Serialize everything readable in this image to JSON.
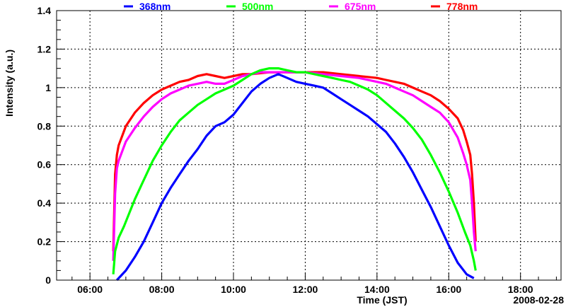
{
  "chart_data": {
    "type": "line",
    "xlabel": "Time (JST)",
    "ylabel": "Intensity (a.u.)",
    "date_label": "2008-02-28",
    "x_tick_labels": [
      "06:00",
      "08:00",
      "10:00",
      "12:00",
      "14:00",
      "16:00",
      "18:00"
    ],
    "x_ticks_hours": [
      6,
      8,
      10,
      12,
      14,
      16,
      18
    ],
    "y_tick_labels": [
      "0",
      "0.2",
      "0.4",
      "0.6",
      "0.8",
      "1",
      "1.2",
      "1.4"
    ],
    "y_ticks": [
      0,
      0.2,
      0.4,
      0.6,
      0.8,
      1.0,
      1.2,
      1.4
    ],
    "xlim_hours": [
      5.07,
      19.13
    ],
    "ylim": [
      0,
      1.4
    ],
    "grid": true,
    "legend_position": "top",
    "series": [
      {
        "name": "368nm",
        "color": "#0000ff",
        "x": [
          6.75,
          7.0,
          7.25,
          7.5,
          7.75,
          8.0,
          8.25,
          8.5,
          8.75,
          9.0,
          9.25,
          9.5,
          9.75,
          10.0,
          10.25,
          10.5,
          10.75,
          11.0,
          11.25,
          11.5,
          11.75,
          12.0,
          12.25,
          12.5,
          12.75,
          13.0,
          13.25,
          13.5,
          13.75,
          14.0,
          14.25,
          14.5,
          14.75,
          15.0,
          15.25,
          15.5,
          15.75,
          16.0,
          16.25,
          16.5,
          16.7
        ],
        "y": [
          0.0,
          0.05,
          0.12,
          0.2,
          0.3,
          0.4,
          0.48,
          0.55,
          0.62,
          0.68,
          0.75,
          0.8,
          0.82,
          0.86,
          0.92,
          0.98,
          1.02,
          1.05,
          1.07,
          1.05,
          1.03,
          1.02,
          1.01,
          1.0,
          0.97,
          0.94,
          0.91,
          0.88,
          0.85,
          0.81,
          0.77,
          0.71,
          0.64,
          0.56,
          0.47,
          0.38,
          0.28,
          0.18,
          0.09,
          0.03,
          0.01
        ]
      },
      {
        "name": "500nm",
        "color": "#00ff00",
        "x": [
          6.65,
          6.7,
          6.8,
          6.95,
          7.1,
          7.25,
          7.5,
          7.75,
          8.0,
          8.25,
          8.5,
          8.75,
          9.0,
          9.25,
          9.5,
          9.75,
          10.0,
          10.25,
          10.5,
          10.75,
          11.0,
          11.25,
          11.5,
          11.75,
          12.0,
          12.25,
          12.5,
          12.75,
          13.0,
          13.25,
          13.5,
          13.75,
          14.0,
          14.25,
          14.5,
          14.75,
          15.0,
          15.25,
          15.5,
          15.75,
          16.0,
          16.25,
          16.45,
          16.6,
          16.7,
          16.75
        ],
        "y": [
          0.03,
          0.15,
          0.22,
          0.28,
          0.35,
          0.42,
          0.52,
          0.62,
          0.7,
          0.77,
          0.83,
          0.87,
          0.91,
          0.94,
          0.97,
          0.99,
          1.01,
          1.04,
          1.07,
          1.09,
          1.1,
          1.1,
          1.09,
          1.08,
          1.08,
          1.07,
          1.06,
          1.05,
          1.04,
          1.03,
          1.01,
          0.99,
          0.96,
          0.92,
          0.88,
          0.84,
          0.79,
          0.73,
          0.65,
          0.56,
          0.46,
          0.35,
          0.25,
          0.18,
          0.1,
          0.05
        ]
      },
      {
        "name": "675nm",
        "color": "#ff00ff",
        "x": [
          6.65,
          6.7,
          6.75,
          6.8,
          6.9,
          7.0,
          7.25,
          7.5,
          7.75,
          8.0,
          8.25,
          8.5,
          8.75,
          9.0,
          9.25,
          9.5,
          9.75,
          10.0,
          10.25,
          10.5,
          10.75,
          11.0,
          11.5,
          12.0,
          12.5,
          13.0,
          13.5,
          14.0,
          14.25,
          14.5,
          14.75,
          15.0,
          15.25,
          15.5,
          15.75,
          16.0,
          16.25,
          16.4,
          16.5,
          16.6,
          16.65,
          16.7,
          16.75
        ],
        "y": [
          0.1,
          0.45,
          0.58,
          0.62,
          0.67,
          0.72,
          0.79,
          0.85,
          0.9,
          0.94,
          0.97,
          0.99,
          1.01,
          1.02,
          1.03,
          1.02,
          1.02,
          1.04,
          1.06,
          1.07,
          1.08,
          1.08,
          1.08,
          1.08,
          1.07,
          1.06,
          1.05,
          1.03,
          1.02,
          1.0,
          0.98,
          0.96,
          0.93,
          0.9,
          0.87,
          0.82,
          0.74,
          0.66,
          0.6,
          0.52,
          0.4,
          0.25,
          0.15
        ]
      },
      {
        "name": "778nm",
        "color": "#ff0000",
        "x": [
          6.65,
          6.7,
          6.75,
          6.8,
          6.9,
          7.0,
          7.25,
          7.5,
          7.75,
          8.0,
          8.25,
          8.5,
          8.75,
          9.0,
          9.25,
          9.5,
          9.75,
          10.0,
          10.25,
          10.5,
          11.0,
          11.5,
          12.0,
          12.5,
          13.0,
          13.5,
          14.0,
          14.25,
          14.5,
          14.75,
          15.0,
          15.25,
          15.5,
          15.75,
          16.0,
          16.25,
          16.4,
          16.5,
          16.6,
          16.65,
          16.7,
          16.75
        ],
        "y": [
          0.15,
          0.55,
          0.65,
          0.7,
          0.75,
          0.8,
          0.87,
          0.92,
          0.96,
          0.99,
          1.01,
          1.03,
          1.04,
          1.06,
          1.07,
          1.06,
          1.05,
          1.06,
          1.07,
          1.07,
          1.08,
          1.08,
          1.08,
          1.08,
          1.07,
          1.06,
          1.05,
          1.04,
          1.03,
          1.02,
          1.0,
          0.98,
          0.96,
          0.93,
          0.89,
          0.84,
          0.78,
          0.72,
          0.65,
          0.55,
          0.4,
          0.2
        ]
      }
    ]
  }
}
